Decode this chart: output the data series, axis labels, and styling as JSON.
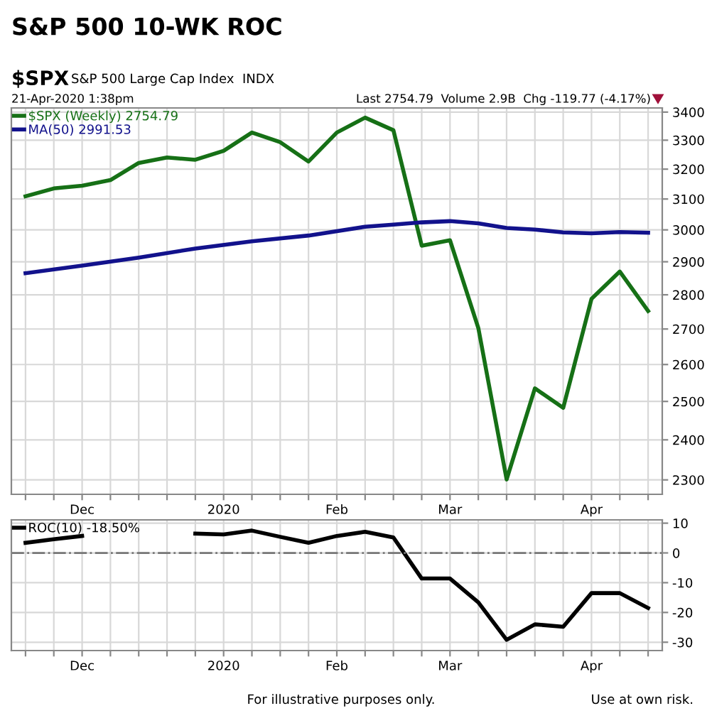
{
  "chart_data": [
    {
      "type": "line",
      "title": "S&P 500 10-WK ROC",
      "log": "y",
      "grid": true,
      "legend": "top left",
      "line_style": "solid",
      "marker": "none",
      "annotations": [
        "$SPX",
        "S&P 500 Large Cap Index  INDX",
        "21-Apr-2020 1:38pm",
        "Last 2754.79  Volume 2.9B  Chg -119.77 (-4.17%)"
      ],
      "x": [
        "2019-11-18",
        "2019-11-25",
        "2019-12-02",
        "2019-12-09",
        "2019-12-16",
        "2019-12-23",
        "2019-12-30",
        "2020-01-06",
        "2020-01-13",
        "2020-01-20",
        "2020-01-27",
        "2020-02-03",
        "2020-02-10",
        "2020-02-17",
        "2020-02-24",
        "2020-03-02",
        "2020-03-09",
        "2020-03-16",
        "2020-03-23",
        "2020-03-30",
        "2020-04-06",
        "2020-04-13",
        "2020-04-20"
      ],
      "xlim": [
        "2019-11-14T12:00",
        "2020-04-23T12:00"
      ],
      "xticks": [
        {
          "value": "2019-11-18",
          "label": null
        },
        {
          "value": "2019-11-25",
          "label": null
        },
        {
          "value": "2019-12-02",
          "label": "Dec"
        },
        {
          "value": "2019-12-09",
          "label": null
        },
        {
          "value": "2019-12-16",
          "label": null
        },
        {
          "value": "2019-12-23",
          "label": null
        },
        {
          "value": "2019-12-30",
          "label": null
        },
        {
          "value": "2020-01-06",
          "label": "2020"
        },
        {
          "value": "2020-01-13",
          "label": null
        },
        {
          "value": "2020-01-20",
          "label": null
        },
        {
          "value": "2020-01-27",
          "label": null
        },
        {
          "value": "2020-02-03",
          "label": "Feb"
        },
        {
          "value": "2020-02-10",
          "label": null
        },
        {
          "value": "2020-02-17",
          "label": null
        },
        {
          "value": "2020-02-24",
          "label": null
        },
        {
          "value": "2020-03-02",
          "label": "Mar"
        },
        {
          "value": "2020-03-09",
          "label": null
        },
        {
          "value": "2020-03-16",
          "label": null
        },
        {
          "value": "2020-03-23",
          "label": null
        },
        {
          "value": "2020-03-30",
          "label": null
        },
        {
          "value": "2020-04-06",
          "label": "Apr"
        },
        {
          "value": "2020-04-13",
          "label": null
        },
        {
          "value": "2020-04-20",
          "label": null
        }
      ],
      "ylim": [
        2265,
        3415
      ],
      "yticks": [
        2300,
        2400,
        2500,
        2600,
        2700,
        2800,
        2900,
        3000,
        3100,
        3200,
        3300,
        3400
      ],
      "series": [
        {
          "name": "$SPX (Weekly) 2754.79",
          "color": "#167016",
          "values": [
            3109,
            3135,
            3144,
            3163,
            3221,
            3240,
            3232,
            3263,
            3327,
            3293,
            3226,
            3327,
            3380,
            3335,
            2950,
            2967,
            2703,
            2301,
            2535,
            2483,
            2788,
            2870,
            2752
          ]
        },
        {
          "name": "MA(50) 2991.53",
          "color": "#12128c",
          "x": [
            "2019-11-18",
            "2019-12-02",
            "2019-12-16",
            "2019-12-30",
            "2020-01-13",
            "2020-01-27",
            "2020-02-10",
            "2020-02-17",
            "2020-02-24",
            "2020-03-02",
            "2020-03-09",
            "2020-03-16",
            "2020-03-23",
            "2020-03-30",
            "2020-04-06",
            "2020-04-13",
            "2020-04-20"
          ],
          "values": [
            2865,
            2888,
            2913,
            2941,
            2964,
            2982,
            3010,
            3017,
            3024,
            3028,
            3021,
            3006,
            3001,
            2992,
            2989,
            2993,
            2991
          ]
        }
      ]
    },
    {
      "type": "line",
      "grid": true,
      "legend": "top left",
      "line_style": "solid",
      "marker": "none",
      "annotations": [
        "For illustrative purposes only.",
        "Use at own risk."
      ],
      "x": [
        "2019-11-18",
        "2019-11-25",
        "2019-12-02",
        "2019-12-09",
        "2019-12-16",
        "2019-12-23",
        "2019-12-30",
        "2020-01-06",
        "2020-01-13",
        "2020-01-20",
        "2020-01-27",
        "2020-02-03",
        "2020-02-10",
        "2020-02-17",
        "2020-02-24",
        "2020-03-02",
        "2020-03-09",
        "2020-03-16",
        "2020-03-23",
        "2020-03-30",
        "2020-04-06",
        "2020-04-13",
        "2020-04-20"
      ],
      "xlim": [
        "2019-11-14T12:00",
        "2020-04-23T12:00"
      ],
      "xticks": [
        {
          "value": "2019-11-18",
          "label": null
        },
        {
          "value": "2019-11-25",
          "label": null
        },
        {
          "value": "2019-12-02",
          "label": "Dec"
        },
        {
          "value": "2019-12-09",
          "label": null
        },
        {
          "value": "2019-12-16",
          "label": null
        },
        {
          "value": "2019-12-23",
          "label": null
        },
        {
          "value": "2019-12-30",
          "label": null
        },
        {
          "value": "2020-01-06",
          "label": "2020"
        },
        {
          "value": "2020-01-13",
          "label": null
        },
        {
          "value": "2020-01-20",
          "label": null
        },
        {
          "value": "2020-01-27",
          "label": null
        },
        {
          "value": "2020-02-03",
          "label": "Feb"
        },
        {
          "value": "2020-02-10",
          "label": null
        },
        {
          "value": "2020-02-17",
          "label": null
        },
        {
          "value": "2020-02-24",
          "label": null
        },
        {
          "value": "2020-03-02",
          "label": "Mar"
        },
        {
          "value": "2020-03-09",
          "label": null
        },
        {
          "value": "2020-03-16",
          "label": null
        },
        {
          "value": "2020-03-23",
          "label": null
        },
        {
          "value": "2020-03-30",
          "label": null
        },
        {
          "value": "2020-04-06",
          "label": "Apr"
        },
        {
          "value": "2020-04-13",
          "label": null
        },
        {
          "value": "2020-04-20",
          "label": null
        }
      ],
      "ylim": [
        -32.8,
        11.1
      ],
      "yticks": [
        10,
        0,
        -10,
        -20,
        -30
      ],
      "ref_lines": [
        {
          "axis": "y",
          "value": 0,
          "label": null,
          "color": "#777777",
          "line_style": "dashdot"
        }
      ],
      "series": [
        {
          "name": "ROC(10) -18.50%",
          "color": "#000000",
          "values": [
            3.4,
            4.6,
            5.7,
            null,
            null,
            null,
            6.5,
            6.2,
            7.5,
            5.4,
            3.4,
            5.7,
            7.1,
            5.2,
            -8.6,
            -8.6,
            -16.6,
            -29.2,
            -24.0,
            -24.8,
            -13.5,
            -13.5,
            -18.5
          ]
        }
      ]
    }
  ]
}
